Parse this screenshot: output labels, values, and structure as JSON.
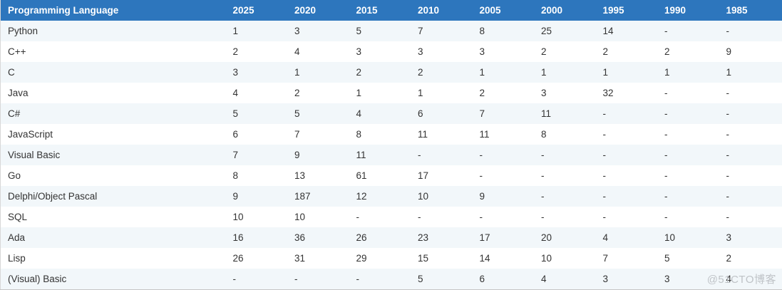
{
  "chart_data": {
    "type": "table",
    "columns": [
      "Programming Language",
      "2025",
      "2020",
      "2015",
      "2010",
      "2005",
      "2000",
      "1995",
      "1990",
      "1985"
    ],
    "rows": [
      {
        "language": "Python",
        "ranks": [
          "1",
          "3",
          "5",
          "7",
          "8",
          "25",
          "14",
          "-",
          "-"
        ]
      },
      {
        "language": "C++",
        "ranks": [
          "2",
          "4",
          "3",
          "3",
          "3",
          "2",
          "2",
          "2",
          "9"
        ]
      },
      {
        "language": "C",
        "ranks": [
          "3",
          "1",
          "2",
          "2",
          "1",
          "1",
          "1",
          "1",
          "1"
        ]
      },
      {
        "language": "Java",
        "ranks": [
          "4",
          "2",
          "1",
          "1",
          "2",
          "3",
          "32",
          "-",
          "-"
        ]
      },
      {
        "language": "C#",
        "ranks": [
          "5",
          "5",
          "4",
          "6",
          "7",
          "11",
          "-",
          "-",
          "-"
        ]
      },
      {
        "language": "JavaScript",
        "ranks": [
          "6",
          "7",
          "8",
          "11",
          "11",
          "8",
          "-",
          "-",
          "-"
        ]
      },
      {
        "language": "Visual Basic",
        "ranks": [
          "7",
          "9",
          "11",
          "-",
          "-",
          "-",
          "-",
          "-",
          "-"
        ]
      },
      {
        "language": "Go",
        "ranks": [
          "8",
          "13",
          "61",
          "17",
          "-",
          "-",
          "-",
          "-",
          "-"
        ]
      },
      {
        "language": "Delphi/Object Pascal",
        "ranks": [
          "9",
          "187",
          "12",
          "10",
          "9",
          "-",
          "-",
          "-",
          "-"
        ]
      },
      {
        "language": "SQL",
        "ranks": [
          "10",
          "10",
          "-",
          "-",
          "-",
          "-",
          "-",
          "-",
          "-"
        ]
      },
      {
        "language": "Ada",
        "ranks": [
          "16",
          "36",
          "26",
          "23",
          "17",
          "20",
          "4",
          "10",
          "3"
        ]
      },
      {
        "language": "Lisp",
        "ranks": [
          "26",
          "31",
          "29",
          "15",
          "14",
          "10",
          "7",
          "5",
          "2"
        ]
      },
      {
        "language": "(Visual) Basic",
        "ranks": [
          "-",
          "-",
          "-",
          "5",
          "6",
          "4",
          "3",
          "3",
          "4"
        ]
      }
    ]
  },
  "watermark": {
    "text": "@51CTO博客"
  },
  "colors": {
    "header_bg": "#2d76bd",
    "header_text": "#ffffff",
    "stripe_row_bg": "#f2f7fa",
    "row_text": "#333333",
    "watermark_text": "#bfc3c7"
  }
}
